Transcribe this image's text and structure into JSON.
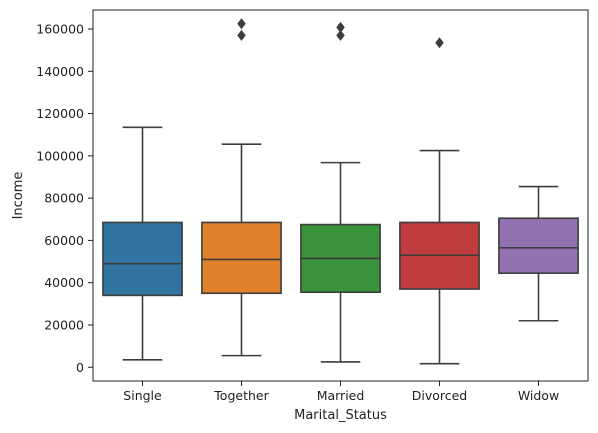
{
  "chart_data": {
    "type": "boxplot",
    "title": "",
    "xlabel": "Marital_Status",
    "ylabel": "Income",
    "ylim": [
      -6500,
      169000
    ],
    "yticks": [
      0,
      20000,
      40000,
      60000,
      80000,
      100000,
      120000,
      140000,
      160000
    ],
    "ytick_labels": [
      "0",
      "20000",
      "40000",
      "60000",
      "80000",
      "100000",
      "120000",
      "140000",
      "160000"
    ],
    "grid": false,
    "legend": "none",
    "categories": [
      "Single",
      "Together",
      "Married",
      "Divorced",
      "Widow"
    ],
    "boxes": [
      {
        "category": "Single",
        "whisker_low": 3500,
        "q1": 34000,
        "median": 49000,
        "q3": 68500,
        "whisker_high": 113500,
        "outliers": [],
        "color": "#3274a1"
      },
      {
        "category": "Together",
        "whisker_low": 5500,
        "q1": 35000,
        "median": 51000,
        "q3": 68500,
        "whisker_high": 105500,
        "outliers": [
          157000,
          162500
        ],
        "color": "#e1812c"
      },
      {
        "category": "Married",
        "whisker_low": 2500,
        "q1": 35500,
        "median": 51500,
        "q3": 67500,
        "whisker_high": 96800,
        "outliers": [
          157000,
          160800
        ],
        "color": "#3a923a"
      },
      {
        "category": "Divorced",
        "whisker_low": 1700,
        "q1": 37000,
        "median": 53000,
        "q3": 68500,
        "whisker_high": 102500,
        "outliers": [
          153500
        ],
        "color": "#c03d3e"
      },
      {
        "category": "Widow",
        "whisker_low": 22000,
        "q1": 44500,
        "median": 56500,
        "q3": 70500,
        "whisker_high": 85500,
        "outliers": [],
        "color": "#9372b2"
      }
    ]
  }
}
